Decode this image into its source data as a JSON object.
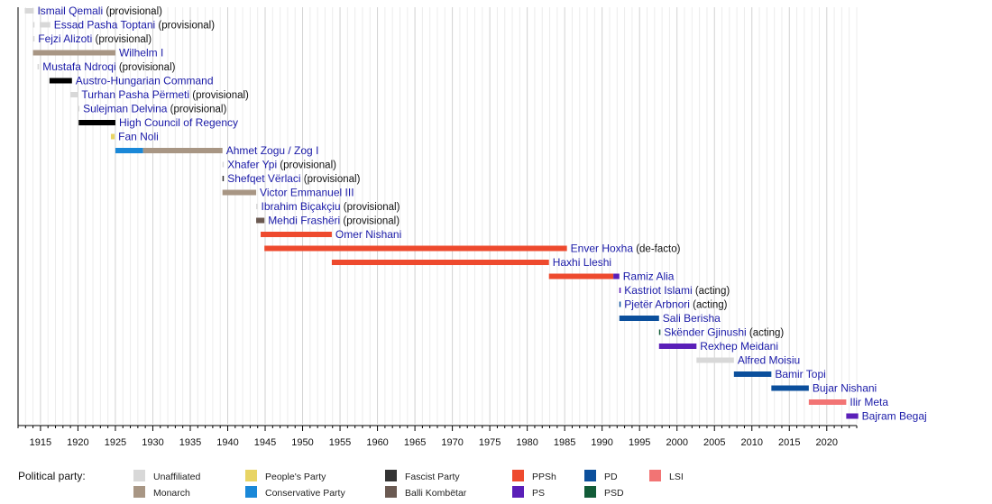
{
  "chart_data": {
    "type": "timeline",
    "xlim": [
      1912,
      2024
    ],
    "x_ticks": [
      1915,
      1920,
      1925,
      1930,
      1935,
      1940,
      1945,
      1950,
      1955,
      1960,
      1965,
      1970,
      1975,
      1980,
      1985,
      1990,
      1995,
      2000,
      2005,
      2010,
      2015,
      2020
    ],
    "grid": true,
    "legend_title": "Political party:",
    "legend_placement": "bottom",
    "parties": [
      {
        "key": "unaffiliated",
        "name": "Unaffiliated",
        "color": "#d8d8d8"
      },
      {
        "key": "monarch",
        "name": "Monarch",
        "color": "#a89684"
      },
      {
        "key": "peoples",
        "name": "People's Party",
        "color": "#e8d464"
      },
      {
        "key": "conservative",
        "name": "Conservative Party",
        "color": "#1a88d8"
      },
      {
        "key": "fascist",
        "name": "Fascist Party",
        "color": "#333333"
      },
      {
        "key": "balli",
        "name": "Balli Kombëtar",
        "color": "#6b5a52"
      },
      {
        "key": "ppsh",
        "name": "PPSh",
        "color": "#ee4a2e"
      },
      {
        "key": "ps",
        "name": "PS",
        "color": "#5a1fb8"
      },
      {
        "key": "pd",
        "name": "PD",
        "color": "#0b4f9c"
      },
      {
        "key": "psd",
        "name": "PSD",
        "color": "#125c38"
      },
      {
        "key": "lsi",
        "name": "LSI",
        "color": "#f27474"
      }
    ],
    "rows": [
      {
        "name": "Ismail Qemali",
        "suffix": "(provisional)",
        "segments": [
          {
            "start": 1912.9,
            "end": 1914.1,
            "party": "unaffiliated"
          }
        ]
      },
      {
        "name": "Essad Pasha Toptani",
        "suffix": "(provisional)",
        "segments": [
          {
            "start": 1914.0,
            "end": 1914.2,
            "party": "unaffiliated"
          },
          {
            "start": 1914.9,
            "end": 1916.3,
            "party": "unaffiliated"
          }
        ]
      },
      {
        "name": "Fejzi Alizoti",
        "suffix": "(provisional)",
        "segments": [
          {
            "start": 1914.0,
            "end": 1914.2,
            "party": "unaffiliated"
          }
        ]
      },
      {
        "name": "Wilhelm I",
        "suffix": "",
        "segments": [
          {
            "start": 1914.0,
            "end": 1925.0,
            "party": "monarch"
          }
        ]
      },
      {
        "name": "Mustafa Ndroqi",
        "suffix": "(provisional)",
        "segments": [
          {
            "start": 1914.6,
            "end": 1914.8,
            "party": "unaffiliated"
          }
        ]
      },
      {
        "name": "Austro-Hungarian Command",
        "suffix": "",
        "segments": [
          {
            "start": 1916.2,
            "end": 1919.2,
            "party": "black"
          }
        ]
      },
      {
        "name": "Turhan Pasha Përmeti",
        "suffix": "(provisional)",
        "segments": [
          {
            "start": 1919.0,
            "end": 1920.0,
            "party": "unaffiliated"
          }
        ]
      },
      {
        "name": "Sulejman Delvina",
        "suffix": "(provisional)",
        "segments": [
          {
            "start": 1920.0,
            "end": 1920.2,
            "party": "unaffiliated"
          }
        ]
      },
      {
        "name": "High Council of Regency",
        "suffix": "",
        "segments": [
          {
            "start": 1920.1,
            "end": 1925.0,
            "party": "black"
          }
        ]
      },
      {
        "name": "Fan Noli",
        "suffix": "",
        "segments": [
          {
            "start": 1924.4,
            "end": 1924.9,
            "party": "peoples"
          }
        ]
      },
      {
        "name": "Ahmet Zogu / Zog I",
        "suffix": "",
        "segments": [
          {
            "start": 1925.0,
            "end": 1928.7,
            "party": "conservative"
          },
          {
            "start": 1928.7,
            "end": 1939.3,
            "party": "monarch"
          }
        ]
      },
      {
        "name": "Xhafer Ypi",
        "suffix": "(provisional)",
        "segments": [
          {
            "start": 1939.3,
            "end": 1939.4,
            "party": "unaffiliated"
          }
        ]
      },
      {
        "name": "Shefqet Vërlaci",
        "suffix": "(provisional)",
        "segments": [
          {
            "start": 1939.3,
            "end": 1939.4,
            "party": "fascist"
          }
        ]
      },
      {
        "name": "Victor Emmanuel III",
        "suffix": "",
        "segments": [
          {
            "start": 1939.3,
            "end": 1943.8,
            "party": "monarch"
          }
        ]
      },
      {
        "name": "Ibrahim Biçakçiu",
        "suffix": "(provisional)",
        "segments": [
          {
            "start": 1943.8,
            "end": 1943.9,
            "party": "unaffiliated"
          }
        ]
      },
      {
        "name": "Mehdi Frashëri",
        "suffix": "(provisional)",
        "segments": [
          {
            "start": 1943.8,
            "end": 1944.9,
            "party": "balli"
          }
        ]
      },
      {
        "name": "Omer Nishani",
        "suffix": "",
        "segments": [
          {
            "start": 1944.4,
            "end": 1953.9,
            "party": "ppsh"
          }
        ]
      },
      {
        "name": "Enver Hoxha",
        "suffix": "(de-facto)",
        "segments": [
          {
            "start": 1944.9,
            "end": 1985.3,
            "party": "ppsh"
          }
        ]
      },
      {
        "name": "Haxhi Lleshi",
        "suffix": "",
        "segments": [
          {
            "start": 1953.9,
            "end": 1982.9,
            "party": "ppsh"
          }
        ]
      },
      {
        "name": "Ramiz Alia",
        "suffix": "",
        "segments": [
          {
            "start": 1982.9,
            "end": 1991.5,
            "party": "ppsh"
          },
          {
            "start": 1991.5,
            "end": 1992.3,
            "party": "ps"
          }
        ]
      },
      {
        "name": "Kastriot Islami",
        "suffix": "(acting)",
        "segments": [
          {
            "start": 1992.3,
            "end": 1992.4,
            "party": "ps"
          }
        ]
      },
      {
        "name": "Pjetër Arbnori",
        "suffix": "(acting)",
        "segments": [
          {
            "start": 1992.3,
            "end": 1992.4,
            "party": "pd"
          }
        ]
      },
      {
        "name": "Sali Berisha",
        "suffix": "",
        "segments": [
          {
            "start": 1992.3,
            "end": 1997.6,
            "party": "pd"
          }
        ]
      },
      {
        "name": "Skënder Gjinushi",
        "suffix": "(acting)",
        "segments": [
          {
            "start": 1997.6,
            "end": 1997.7,
            "party": "psd"
          }
        ]
      },
      {
        "name": "Rexhep Meidani",
        "suffix": "",
        "segments": [
          {
            "start": 1997.6,
            "end": 2002.6,
            "party": "ps"
          }
        ]
      },
      {
        "name": "Alfred Moisiu",
        "suffix": "",
        "segments": [
          {
            "start": 2002.6,
            "end": 2007.6,
            "party": "unaffiliated"
          }
        ]
      },
      {
        "name": "Bamir Topi",
        "suffix": "",
        "segments": [
          {
            "start": 2007.6,
            "end": 2012.6,
            "party": "pd"
          }
        ]
      },
      {
        "name": "Bujar Nishani",
        "suffix": "",
        "segments": [
          {
            "start": 2012.6,
            "end": 2017.6,
            "party": "pd"
          }
        ]
      },
      {
        "name": "Ilir Meta",
        "suffix": "",
        "segments": [
          {
            "start": 2017.6,
            "end": 2022.6,
            "party": "lsi"
          }
        ]
      },
      {
        "name": "Bajram Begaj",
        "suffix": "",
        "segments": [
          {
            "start": 2022.6,
            "end": 2024.2,
            "party": "ps"
          }
        ]
      }
    ]
  }
}
